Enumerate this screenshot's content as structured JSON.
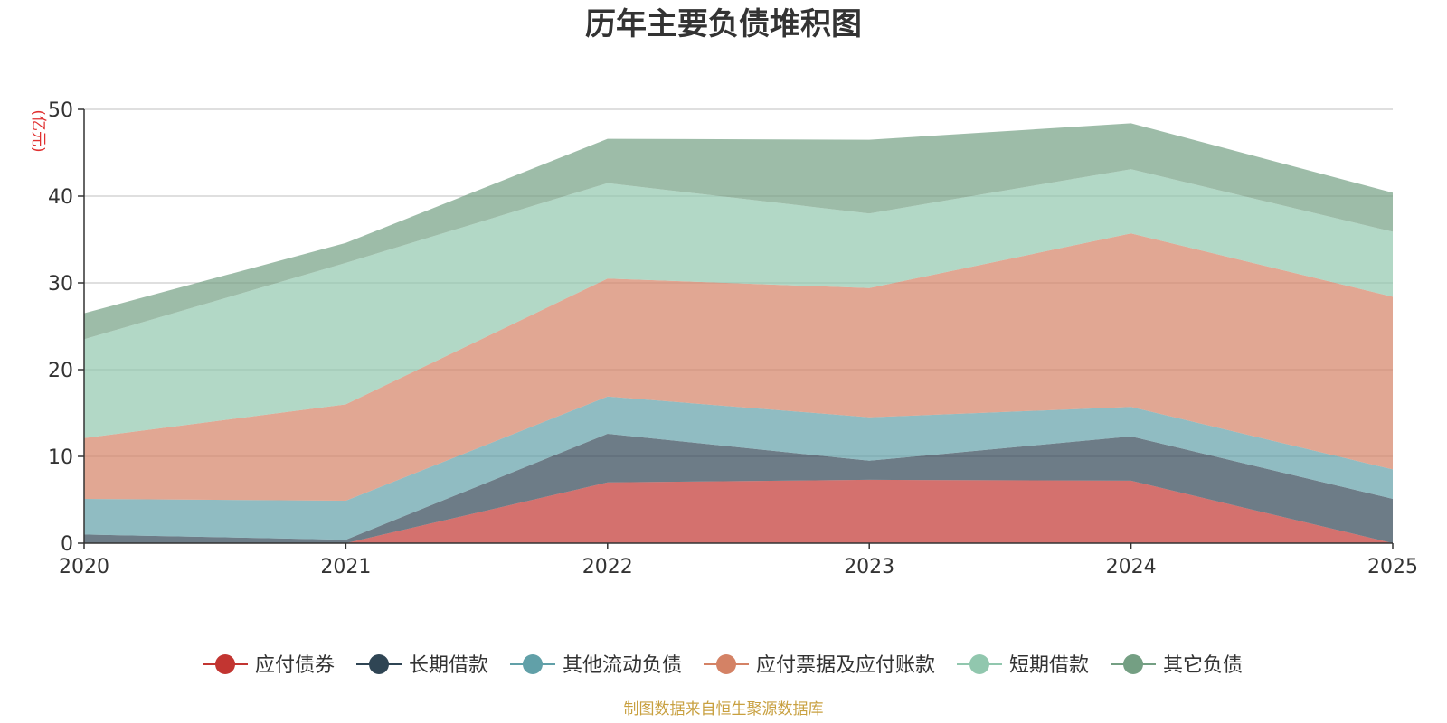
{
  "chart_data": {
    "type": "area",
    "stacked": true,
    "title": "历年主要负债堆积图",
    "ylabel": "(亿元)",
    "xlabel": "",
    "x": [
      "2020",
      "2021",
      "2022",
      "2023",
      "2024",
      "2025"
    ],
    "ylim": [
      0,
      50
    ],
    "yticks": [
      0,
      10,
      20,
      30,
      40,
      50
    ],
    "grid": true,
    "legend_position": "bottom",
    "series": [
      {
        "name": "应付债券",
        "color": "#c23531",
        "values": [
          0,
          0,
          7.0,
          7.3,
          7.2,
          0
        ]
      },
      {
        "name": "长期借款",
        "color": "#2f4554",
        "values": [
          1.0,
          0.4,
          5.6,
          2.2,
          5.1,
          5.1
        ]
      },
      {
        "name": "其他流动负债",
        "color": "#61a0a8",
        "values": [
          4.1,
          4.5,
          4.3,
          5.0,
          3.4,
          3.4
        ]
      },
      {
        "name": "应付票据及应付账款",
        "color": "#d48265",
        "values": [
          7.0,
          11.1,
          13.6,
          14.9,
          20.0,
          19.9
        ]
      },
      {
        "name": "短期借款",
        "color": "#91c7ae",
        "values": [
          11.4,
          16.3,
          11.0,
          8.6,
          7.4,
          7.5
        ]
      },
      {
        "name": "其它负债",
        "color": "#749f83",
        "values": [
          3.0,
          2.3,
          5.1,
          8.5,
          5.3,
          4.5
        ]
      }
    ]
  },
  "source": "制图数据来自恒生聚源数据库"
}
